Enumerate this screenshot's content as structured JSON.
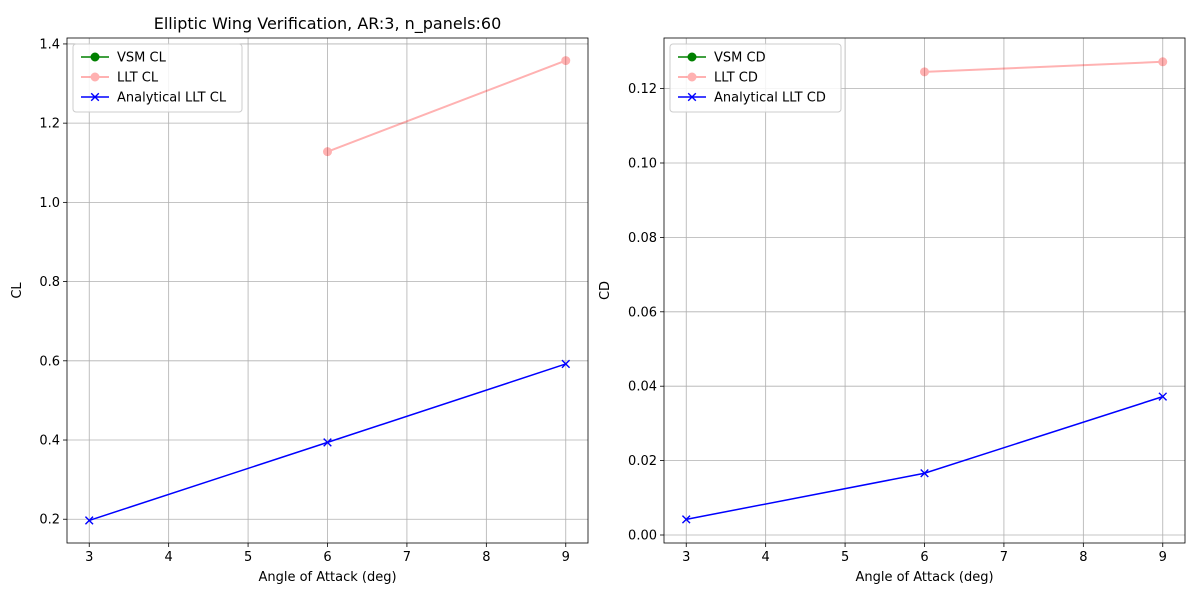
{
  "chart_data": [
    {
      "type": "line",
      "title": "Elliptic Wing Verification, AR:3, n_panels:60",
      "xlabel": "Angle of Attack (deg)",
      "ylabel": "CL",
      "xlim": [
        2.72,
        9.28
      ],
      "ylim": [
        0.14,
        1.415
      ],
      "xticks": [
        3,
        4,
        5,
        6,
        7,
        8,
        9
      ],
      "yticks": [
        0.2,
        0.4,
        0.6,
        0.8,
        1.0,
        1.2,
        1.4
      ],
      "ytick_labels": [
        "0.2",
        "0.4",
        "0.6",
        "0.8",
        "1.0",
        "1.2",
        "1.4"
      ],
      "grid": true,
      "legend_position": "upper-left",
      "series": [
        {
          "name": "VSM CL",
          "color": "#008000",
          "marker": "circle",
          "x": [],
          "y": []
        },
        {
          "name": "LLT CL",
          "color": "#ff0000",
          "opacity": 0.3,
          "marker": "circle",
          "x": [
            6,
            9
          ],
          "y": [
            1.128,
            1.358
          ]
        },
        {
          "name": "Analytical LLT CL",
          "color": "#0000ff",
          "marker": "x",
          "x": [
            3,
            6,
            9
          ],
          "y": [
            0.197,
            0.394,
            0.592
          ]
        }
      ]
    },
    {
      "type": "line",
      "title": "",
      "xlabel": "Angle of Attack (deg)",
      "ylabel": "CD",
      "xlim": [
        2.72,
        9.28
      ],
      "ylim": [
        -0.00215,
        0.1336
      ],
      "xticks": [
        3,
        4,
        5,
        6,
        7,
        8,
        9
      ],
      "yticks": [
        0.0,
        0.02,
        0.04,
        0.06,
        0.08,
        0.1,
        0.12
      ],
      "ytick_labels": [
        "0.00",
        "0.02",
        "0.04",
        "0.06",
        "0.08",
        "0.10",
        "0.12"
      ],
      "grid": true,
      "legend_position": "upper-left",
      "series": [
        {
          "name": "VSM CD",
          "color": "#008000",
          "marker": "circle",
          "x": [],
          "y": []
        },
        {
          "name": "LLT CD",
          "color": "#ff0000",
          "opacity": 0.3,
          "marker": "circle",
          "x": [
            6,
            9
          ],
          "y": [
            0.1245,
            0.1272
          ]
        },
        {
          "name": "Analytical LLT CD",
          "color": "#0000ff",
          "marker": "x",
          "x": [
            3,
            6,
            9
          ],
          "y": [
            0.0042,
            0.0166,
            0.0372
          ]
        }
      ]
    }
  ]
}
